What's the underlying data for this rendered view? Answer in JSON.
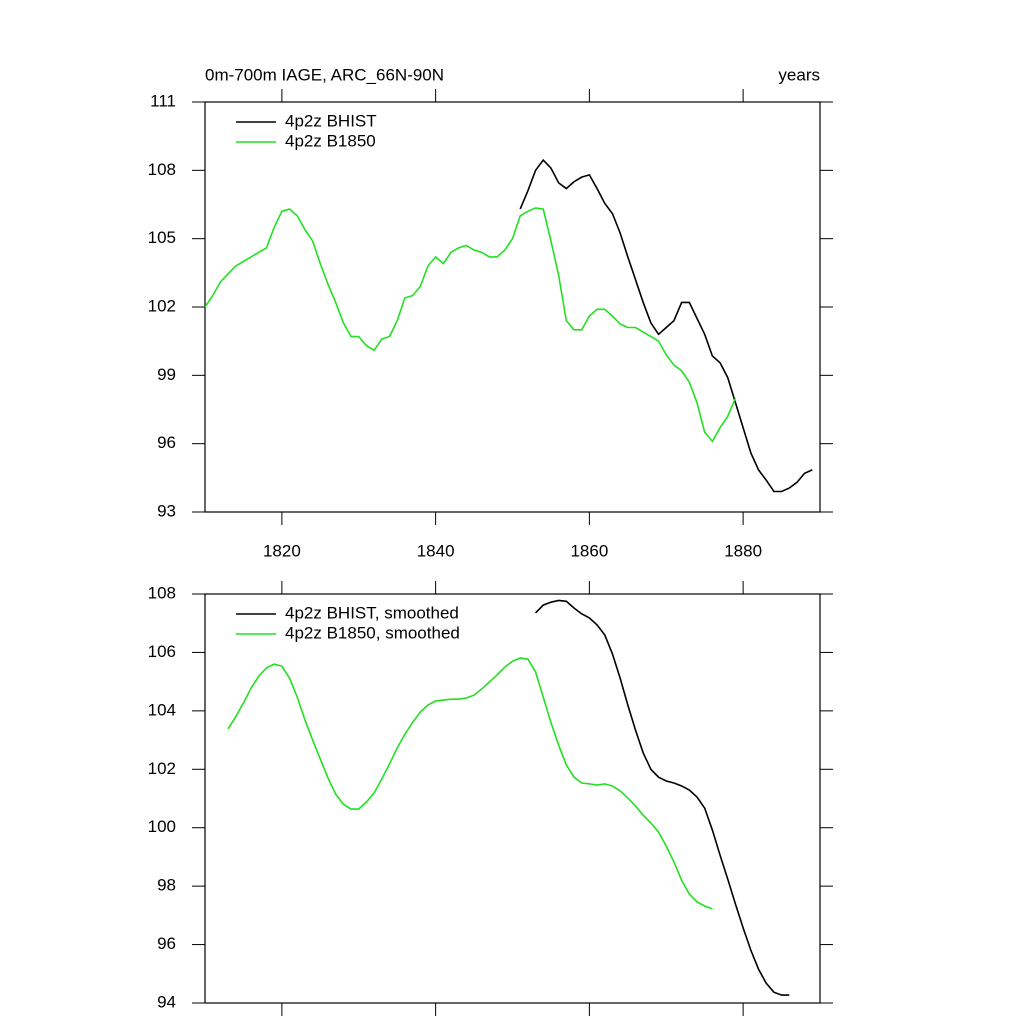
{
  "chart_data": [
    {
      "type": "line",
      "title": "0m-700m IAGE, ARC_66N-90N",
      "right_title": "years",
      "x": [
        1810,
        1811,
        1812,
        1813,
        1814,
        1815,
        1816,
        1817,
        1818,
        1819,
        1820,
        1821,
        1822,
        1823,
        1824,
        1825,
        1826,
        1827,
        1828,
        1829,
        1830,
        1831,
        1832,
        1833,
        1834,
        1835,
        1836,
        1837,
        1838,
        1839,
        1840,
        1841,
        1842,
        1843,
        1844,
        1845,
        1846,
        1847,
        1848,
        1849,
        1850,
        1851,
        1852,
        1853,
        1854,
        1855,
        1856,
        1857,
        1858,
        1859,
        1860,
        1861,
        1862,
        1863,
        1864,
        1865,
        1866,
        1867,
        1868,
        1869,
        1870,
        1871,
        1872,
        1873,
        1874,
        1875,
        1876,
        1877,
        1878,
        1879,
        1880,
        1881,
        1882,
        1883,
        1884,
        1885,
        1886,
        1887,
        1888,
        1889
      ],
      "series": [
        {
          "name": "4p2z BHIST",
          "color": "#000000",
          "values": [
            null,
            null,
            null,
            null,
            null,
            null,
            null,
            null,
            null,
            null,
            null,
            null,
            null,
            null,
            null,
            null,
            null,
            null,
            null,
            null,
            null,
            null,
            null,
            null,
            null,
            null,
            null,
            null,
            null,
            null,
            null,
            null,
            null,
            null,
            null,
            null,
            null,
            null,
            null,
            null,
            null,
            106.3,
            107.1,
            108.0,
            108.45,
            108.1,
            107.45,
            107.2,
            107.5,
            107.7,
            107.8,
            107.2,
            106.55,
            106.1,
            105.25,
            104.2,
            103.2,
            102.2,
            101.3,
            100.8,
            101.1,
            101.4,
            102.2,
            102.2,
            101.5,
            100.8,
            99.85,
            99.55,
            98.9,
            97.8,
            96.7,
            95.6,
            94.85,
            94.4,
            93.9,
            93.9,
            94.05,
            94.3,
            94.7,
            94.85
          ]
        },
        {
          "name": "4p2z B1850",
          "color": "#22e022",
          "values": [
            102.0,
            102.5,
            103.1,
            103.45,
            103.8,
            104.0,
            104.2,
            104.4,
            104.6,
            105.5,
            106.2,
            106.3,
            106.0,
            105.4,
            104.9,
            103.9,
            103.0,
            102.2,
            101.3,
            100.7,
            100.7,
            100.3,
            100.1,
            100.6,
            100.7,
            101.4,
            102.4,
            102.5,
            102.9,
            103.8,
            104.2,
            103.9,
            104.4,
            104.6,
            104.7,
            104.5,
            104.4,
            104.2,
            104.2,
            104.5,
            105.0,
            106.0,
            106.2,
            106.35,
            106.3,
            104.9,
            103.4,
            101.4,
            101.0,
            101.0,
            101.6,
            101.9,
            101.9,
            101.6,
            101.25,
            101.1,
            101.1,
            100.9,
            100.7,
            100.5,
            99.9,
            99.45,
            99.2,
            98.7,
            97.8,
            96.5,
            96.1,
            96.7,
            97.2,
            98.0,
            null,
            null,
            null,
            null,
            null,
            null,
            null,
            null,
            null,
            null
          ]
        }
      ],
      "xlim": [
        1810,
        1890
      ],
      "xticks": [
        1820,
        1840,
        1860,
        1880
      ],
      "ylim": [
        93,
        111
      ],
      "yticks": [
        93,
        96,
        99,
        102,
        105,
        108,
        111
      ],
      "legend": "upper left"
    },
    {
      "type": "line",
      "x": [
        1813,
        1814,
        1815,
        1816,
        1817,
        1818,
        1819,
        1820,
        1821,
        1822,
        1823,
        1824,
        1825,
        1826,
        1827,
        1828,
        1829,
        1830,
        1831,
        1832,
        1833,
        1834,
        1835,
        1836,
        1837,
        1838,
        1839,
        1840,
        1841,
        1842,
        1843,
        1844,
        1845,
        1846,
        1847,
        1848,
        1849,
        1850,
        1851,
        1852,
        1853,
        1854,
        1855,
        1856,
        1857,
        1858,
        1859,
        1860,
        1861,
        1862,
        1863,
        1864,
        1865,
        1866,
        1867,
        1868,
        1869,
        1870,
        1871,
        1872,
        1873,
        1874,
        1875,
        1876,
        1877,
        1878,
        1879,
        1880,
        1881,
        1882,
        1883,
        1884,
        1885,
        1886
      ],
      "series": [
        {
          "name": "4p2z BHIST, smoothed",
          "color": "#000000",
          "values": [
            null,
            null,
            null,
            null,
            null,
            null,
            null,
            null,
            null,
            null,
            null,
            null,
            null,
            null,
            null,
            null,
            null,
            null,
            null,
            null,
            null,
            null,
            null,
            null,
            null,
            null,
            null,
            null,
            null,
            null,
            null,
            null,
            null,
            null,
            null,
            null,
            null,
            null,
            null,
            null,
            107.35,
            107.62,
            107.72,
            107.78,
            107.75,
            107.52,
            107.32,
            107.18,
            106.94,
            106.6,
            105.95,
            105.12,
            104.2,
            103.34,
            102.56,
            102.0,
            101.73,
            101.6,
            101.53,
            101.43,
            101.29,
            101.05,
            100.67,
            99.92,
            99.06,
            98.24,
            97.39,
            96.57,
            95.81,
            95.16,
            94.68,
            94.37,
            94.27,
            94.27
          ]
        },
        {
          "name": "4p2z B1850, smoothed",
          "color": "#22e022",
          "values": [
            103.38,
            103.8,
            104.27,
            104.78,
            105.19,
            105.47,
            105.6,
            105.53,
            105.12,
            104.47,
            103.69,
            103.0,
            102.35,
            101.7,
            101.15,
            100.8,
            100.64,
            100.64,
            100.88,
            101.19,
            101.67,
            102.18,
            102.73,
            103.2,
            103.6,
            103.96,
            104.2,
            104.34,
            104.37,
            104.4,
            104.4,
            104.44,
            104.54,
            104.75,
            104.99,
            105.23,
            105.5,
            105.7,
            105.81,
            105.77,
            105.33,
            104.47,
            103.6,
            102.83,
            102.15,
            101.73,
            101.53,
            101.5,
            101.46,
            101.5,
            101.43,
            101.26,
            101.02,
            100.74,
            100.43,
            100.16,
            99.85,
            99.37,
            98.83,
            98.2,
            97.73,
            97.46,
            97.32,
            97.22,
            null,
            null,
            null,
            null,
            null,
            null,
            null,
            null,
            null,
            null
          ]
        }
      ],
      "xlim": [
        1810,
        1890
      ],
      "xticks": [
        1820,
        1840,
        1860,
        1880
      ],
      "ylim": [
        94,
        108
      ],
      "yticks": [
        94,
        96,
        98,
        100,
        102,
        104,
        106,
        108
      ],
      "legend": "upper left"
    }
  ]
}
